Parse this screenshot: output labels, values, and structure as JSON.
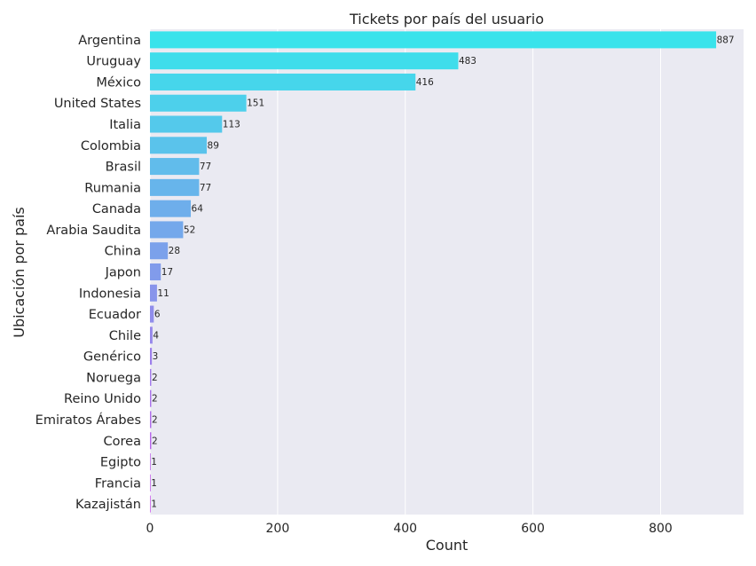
{
  "chart_data": {
    "type": "bar",
    "orientation": "horizontal",
    "title": "Tickets por país del usuario",
    "xlabel": "Count",
    "ylabel": "Ubicación por país",
    "xlim": [
      0,
      930
    ],
    "xticks": [
      0,
      200,
      400,
      600,
      800
    ],
    "grid": true,
    "background": "#EAEAF2",
    "colormap": "cool",
    "categories": [
      "Argentina",
      "Uruguay",
      "México",
      "United States",
      "Italia",
      "Colombia",
      "Brasil",
      "Rumania",
      "Canada",
      "Arabia Saudita",
      "China",
      "Japon",
      "Indonesia",
      "Ecuador",
      "Chile",
      "Genérico",
      "Noruega",
      "Reino Unido",
      "Emiratos Árabes",
      "Corea",
      "Egipto",
      "Francia",
      "Kazajistán"
    ],
    "values": [
      887,
      483,
      416,
      151,
      113,
      89,
      77,
      77,
      64,
      52,
      28,
      17,
      11,
      6,
      4,
      3,
      2,
      2,
      2,
      2,
      1,
      1,
      1
    ]
  }
}
